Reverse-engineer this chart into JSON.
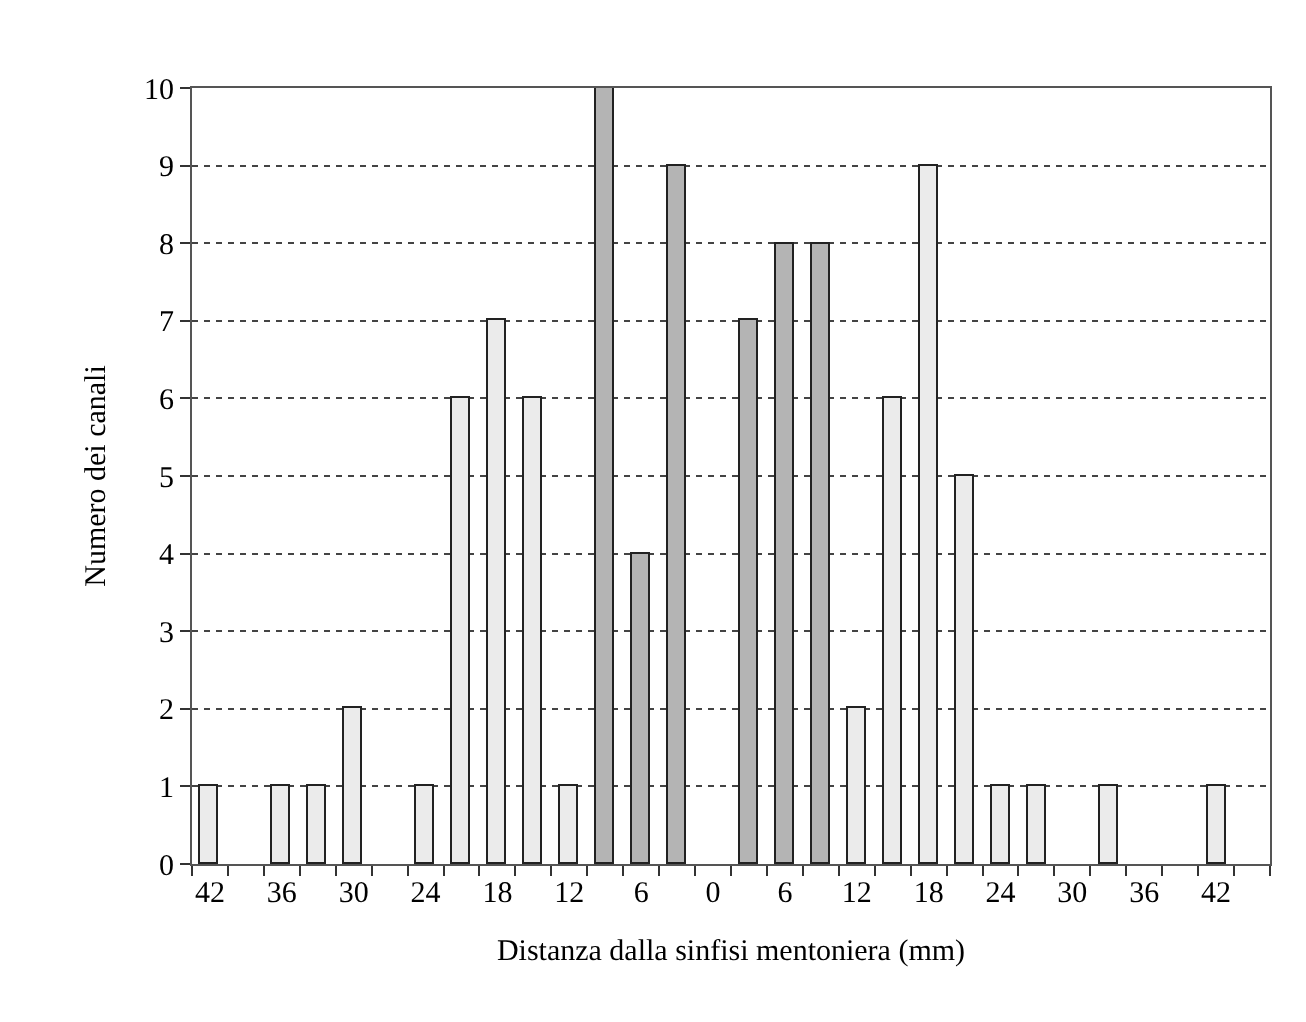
{
  "chart_data": {
    "type": "bar",
    "xlabel": "Distanza dalla sinfisi mentoniera (mm)",
    "ylabel": "Numero dei canali",
    "x": [
      -42,
      -39,
      -36,
      -33,
      -30,
      -27,
      -24,
      -21,
      -18,
      -15,
      -12,
      -9,
      -6,
      -3,
      0,
      3,
      6,
      9,
      12,
      15,
      18,
      21,
      24,
      27,
      30,
      33,
      36,
      39,
      42
    ],
    "values": [
      1,
      null,
      1,
      1,
      2,
      null,
      1,
      6,
      7,
      6,
      1,
      10,
      4,
      9,
      null,
      7,
      8,
      8,
      2,
      6,
      9,
      5,
      1,
      1,
      null,
      1,
      null,
      null,
      1
    ],
    "colors": [
      "#ebebeb",
      "#ebebeb",
      "#ebebeb",
      "#ebebeb",
      "#ebebeb",
      "#ebebeb",
      "#ebebeb",
      "#ebebeb",
      "#ebebeb",
      "#ebebeb",
      "#ebebeb",
      "#b4b4b4",
      "#b4b4b4",
      "#b4b4b4",
      "#ebebeb",
      "#b4b4b4",
      "#b4b4b4",
      "#b4b4b4",
      "#ebebeb",
      "#ebebeb",
      "#ebebeb",
      "#ebebeb",
      "#ebebeb",
      "#ebebeb",
      "#ebebeb",
      "#ebebeb",
      "#ebebeb",
      "#ebebeb",
      "#ebebeb"
    ],
    "xlim": [
      -43.5,
      46.5
    ],
    "xticks": [
      {
        "value": -43.5,
        "label": null
      },
      {
        "value": -42,
        "label": "42"
      },
      {
        "value": -40.5,
        "label": null
      },
      {
        "value": -37.5,
        "label": null
      },
      {
        "value": -36,
        "label": "36"
      },
      {
        "value": -34.5,
        "label": null
      },
      {
        "value": -31.5,
        "label": null
      },
      {
        "value": -30,
        "label": "30"
      },
      {
        "value": -28.5,
        "label": null
      },
      {
        "value": -25.5,
        "label": null
      },
      {
        "value": -24,
        "label": "24"
      },
      {
        "value": -22.5,
        "label": null
      },
      {
        "value": -19.5,
        "label": null
      },
      {
        "value": -18,
        "label": "18"
      },
      {
        "value": -16.5,
        "label": null
      },
      {
        "value": -13.5,
        "label": null
      },
      {
        "value": -12,
        "label": "12"
      },
      {
        "value": -10.5,
        "label": null
      },
      {
        "value": -7.5,
        "label": null
      },
      {
        "value": -6,
        "label": "6"
      },
      {
        "value": -4.5,
        "label": null
      },
      {
        "value": -1.5,
        "label": null
      },
      {
        "value": 0,
        "label": "0"
      },
      {
        "value": 1.5,
        "label": null
      },
      {
        "value": 4.5,
        "label": null
      },
      {
        "value": 6,
        "label": "6"
      },
      {
        "value": 7.5,
        "label": null
      },
      {
        "value": 10.5,
        "label": null
      },
      {
        "value": 12,
        "label": "12"
      },
      {
        "value": 13.5,
        "label": null
      },
      {
        "value": 16.5,
        "label": null
      },
      {
        "value": 18,
        "label": "18"
      },
      {
        "value": 19.5,
        "label": null
      },
      {
        "value": 22.5,
        "label": null
      },
      {
        "value": 24,
        "label": "24"
      },
      {
        "value": 25.5,
        "label": null
      },
      {
        "value": 28.5,
        "label": null
      },
      {
        "value": 30,
        "label": "30"
      },
      {
        "value": 31.5,
        "label": null
      },
      {
        "value": 34.5,
        "label": null
      },
      {
        "value": 36,
        "label": "36"
      },
      {
        "value": 37.5,
        "label": null
      },
      {
        "value": 40.5,
        "label": null
      },
      {
        "value": 42,
        "label": "42"
      },
      {
        "value": 43.5,
        "label": null
      },
      {
        "value": 46.5,
        "label": null
      }
    ],
    "ylim": [
      0,
      10
    ],
    "yticks": [
      0,
      1,
      2,
      3,
      4,
      5,
      6,
      7,
      8,
      9,
      10
    ],
    "grid": "y",
    "legend": false
  }
}
